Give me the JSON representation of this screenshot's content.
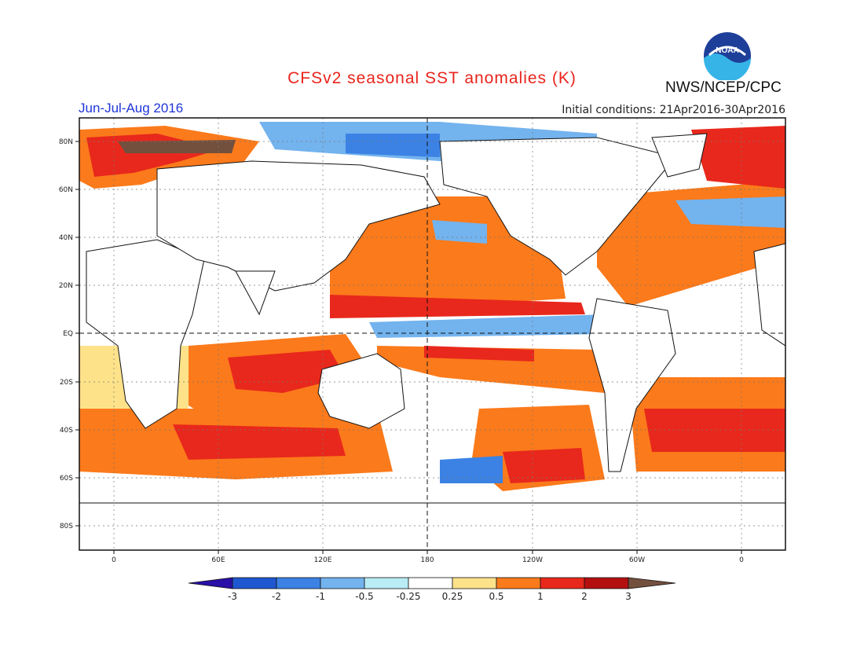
{
  "title": "CFSv2 seasonal SST anomalies (K)",
  "season": "Jun-Jul-Aug 2016",
  "initial_conditions": "Initial conditions: 21Apr2016-30Apr2016",
  "organization": "NWS/NCEP/CPC",
  "logo": {
    "text": "NOAA"
  },
  "map": {
    "lat_labels": [
      "80N",
      "60N",
      "40N",
      "20N",
      "EQ",
      "20S",
      "40S",
      "60S",
      "80S"
    ],
    "lon_labels": [
      "0",
      "60E",
      "120E",
      "180",
      "120W",
      "60W",
      "0"
    ]
  },
  "colorbar": {
    "labels": [
      "-3",
      "-2",
      "-1",
      "-0.5",
      "-0.25",
      "0.25",
      "0.5",
      "1",
      "2",
      "3"
    ],
    "colors": [
      "#2a0fa8",
      "#1f57d0",
      "#3b82e4",
      "#73b3ee",
      "#b9ecf4",
      "#ffffff",
      "#fde28a",
      "#fb7a1b",
      "#e8281c",
      "#b41010",
      "#73503e"
    ]
  }
}
